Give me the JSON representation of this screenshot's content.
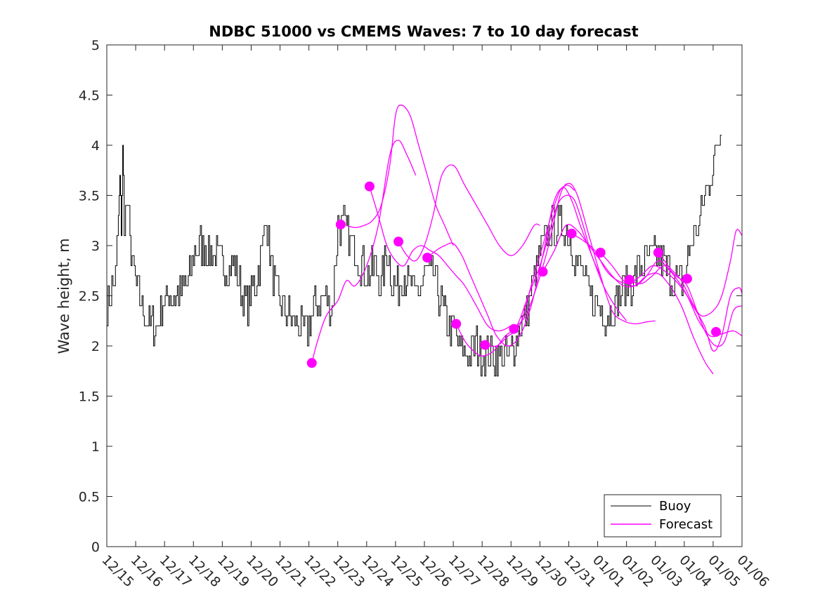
{
  "chart_data": {
    "type": "line",
    "title": "NDBC 51000 vs CMEMS Waves: 7 to 10 day forecast",
    "xlabel": "",
    "ylabel": "Wave height, m",
    "xlim": [
      0,
      22
    ],
    "ylim": [
      0,
      5
    ],
    "yticks": [
      0,
      0.5,
      1,
      1.5,
      2,
      2.5,
      3,
      3.5,
      4,
      4.5,
      5
    ],
    "ytick_labels": [
      "0",
      "0.5",
      "1",
      "1.5",
      "2",
      "2.5",
      "3",
      "3.5",
      "4",
      "4.5",
      "5"
    ],
    "xticks": [
      0,
      1,
      2,
      3,
      4,
      5,
      6,
      7,
      8,
      9,
      10,
      11,
      12,
      13,
      14,
      15,
      16,
      17,
      18,
      19,
      20,
      21,
      22
    ],
    "xtick_labels": [
      "12/15",
      "12/16",
      "12/17",
      "12/18",
      "12/19",
      "12/20",
      "12/21",
      "12/22",
      "12/23",
      "12/24",
      "12/25",
      "12/26",
      "12/27",
      "12/28",
      "12/29",
      "12/30",
      "12/31",
      "01/01",
      "01/02",
      "01/03",
      "01/04",
      "01/05",
      "01/06"
    ],
    "x_unit": "days since 12/15",
    "grid": false,
    "legend": {
      "position": "bottom-right",
      "entries": [
        "Buoy",
        "Forecast"
      ]
    },
    "colors": {
      "buoy": "#000000",
      "forecast": "#ff00ff",
      "axis": "#262626"
    },
    "series": [
      {
        "name": "Buoy",
        "color": "#000000",
        "x": [
          0,
          0.3,
          0.4,
          0.45,
          0.5,
          0.55,
          0.6,
          0.7,
          0.8,
          0.95,
          1.1,
          1.3,
          1.5,
          1.7,
          1.9,
          2.1,
          2.4,
          2.7,
          2.9,
          3.0,
          3.2,
          3.4,
          3.6,
          3.8,
          4.0,
          4.2,
          4.4,
          4.6,
          4.8,
          5.0,
          5.2,
          5.4,
          5.5,
          5.6,
          5.8,
          6.0,
          6.3,
          6.6,
          6.9,
          7.0,
          7.2,
          7.5,
          7.8,
          8.0,
          8.2,
          8.3,
          8.5,
          8.7,
          9.0,
          9.3,
          9.5,
          9.7,
          9.9,
          10.1,
          10.3,
          10.5,
          10.7,
          11.0,
          11.3,
          11.5,
          11.7,
          11.9,
          12.2,
          12.5,
          12.8,
          13.0,
          13.3,
          13.6,
          13.9,
          14.1,
          14.3,
          14.5,
          14.8,
          15.0,
          15.2,
          15.5,
          15.8,
          16.0,
          16.2,
          16.5,
          16.7,
          17.0,
          17.3,
          17.6,
          17.9,
          18.2,
          18.5,
          18.8,
          19.0,
          19.3,
          19.5,
          19.8,
          20.0,
          20.2,
          20.5,
          20.7,
          20.9,
          21.1,
          21.2,
          21.3
        ],
        "y": [
          2.4,
          2.7,
          3.3,
          3.6,
          3.2,
          3.9,
          3.3,
          3.4,
          3.0,
          2.7,
          2.5,
          2.3,
          2.2,
          2.2,
          2.4,
          2.5,
          2.5,
          2.6,
          2.7,
          2.9,
          3.0,
          3.0,
          2.9,
          2.9,
          2.8,
          2.8,
          2.8,
          2.6,
          2.4,
          2.5,
          2.7,
          3.0,
          3.4,
          3.0,
          2.6,
          2.4,
          2.3,
          2.2,
          2.1,
          2.2,
          2.4,
          2.5,
          2.4,
          3.2,
          3.2,
          3.1,
          3.0,
          2.9,
          2.7,
          2.8,
          2.6,
          3.0,
          2.6,
          2.6,
          2.7,
          2.6,
          2.5,
          2.7,
          2.7,
          2.5,
          2.3,
          2.2,
          2.0,
          1.9,
          2.0,
          1.9,
          1.9,
          1.9,
          1.9,
          2.0,
          2.2,
          2.3,
          2.7,
          2.9,
          3.1,
          3.2,
          3.2,
          3.1,
          2.9,
          2.7,
          2.5,
          2.4,
          2.3,
          2.4,
          2.6,
          2.6,
          2.8,
          2.9,
          2.9,
          2.8,
          2.7,
          2.6,
          2.7,
          3.0,
          3.2,
          3.5,
          3.7,
          3.9,
          4.1,
          4.1
        ]
      },
      {
        "name": "Forecast",
        "color": "#ff00ff",
        "segments": [
          {
            "x": [
              7.1,
              7.3,
              7.6,
              8.0,
              8.3,
              8.6,
              9.0,
              9.4,
              9.8,
              10.1,
              10.4,
              10.7
            ],
            "y": [
              1.83,
              2.05,
              2.3,
              2.45,
              2.65,
              2.6,
              2.8,
              3.2,
              3.9,
              4.05,
              3.9,
              3.7
            ]
          },
          {
            "x": [
              8.3,
              8.6,
              8.9,
              9.2,
              9.5,
              9.8,
              10.0,
              10.2,
              10.5,
              10.8,
              11.1,
              11.4,
              11.7,
              12.0
            ],
            "y": [
              3.2,
              3.18,
              3.2,
              3.25,
              3.4,
              3.8,
              4.3,
              4.4,
              4.3,
              4.0,
              3.7,
              3.4,
              3.2,
              3.0
            ]
          },
          {
            "x": [
              9.1,
              9.4,
              9.7,
              10.0,
              10.3,
              10.6,
              10.9,
              11.2,
              11.5,
              11.8,
              12.1,
              12.4,
              12.8,
              13.2,
              13.6,
              14.0
            ],
            "y": [
              3.59,
              3.3,
              3.0,
              2.85,
              2.8,
              2.95,
              3.0,
              2.95,
              2.9,
              2.8,
              2.7,
              2.6,
              2.4,
              2.2,
              2.15,
              2.2
            ]
          },
          {
            "x": [
              10.1,
              10.4,
              10.7,
              11.0,
              11.3,
              11.6,
              12.0,
              12.4,
              12.8,
              13.2,
              13.6,
              14.0,
              14.4,
              14.8,
              15.0
            ],
            "y": [
              3.04,
              2.9,
              2.85,
              3.0,
              3.3,
              3.7,
              3.8,
              3.6,
              3.4,
              3.2,
              3.0,
              2.9,
              3.0,
              3.2,
              3.2
            ]
          },
          {
            "x": [
              11.1,
              11.4,
              11.7,
              12.0,
              12.3,
              12.6,
              12.9,
              13.2,
              13.5,
              13.9,
              14.3,
              14.7,
              15.1,
              15.5,
              15.9,
              16.2
            ],
            "y": [
              2.88,
              2.95,
              3.0,
              3.02,
              2.9,
              2.7,
              2.5,
              2.3,
              2.1,
              2.0,
              2.1,
              2.4,
              2.9,
              3.45,
              3.6,
              3.55
            ]
          },
          {
            "x": [
              12.1,
              12.4,
              12.7,
              13.0,
              13.4,
              13.8,
              14.2,
              14.6,
              15.0,
              15.3,
              15.6,
              15.9,
              16.2,
              16.5,
              16.8,
              17.1
            ],
            "y": [
              2.22,
              2.05,
              1.95,
              1.9,
              1.95,
              2.1,
              2.2,
              2.5,
              2.8,
              3.1,
              3.4,
              3.5,
              3.45,
              3.2,
              2.9,
              2.7
            ]
          },
          {
            "x": [
              13.1,
              13.5,
              13.9,
              14.3,
              14.7,
              15.1,
              15.5,
              15.8,
              16.1,
              16.4,
              16.8,
              17.2,
              17.6,
              18.0
            ],
            "y": [
              2.01,
              2.0,
              2.1,
              2.2,
              2.6,
              3.0,
              3.4,
              3.58,
              3.45,
              3.2,
              2.9,
              2.6,
              2.4,
              2.25
            ]
          },
          {
            "x": [
              14.1,
              14.5,
              14.9,
              15.3,
              15.7,
              16.0,
              16.3,
              16.7,
              17.1,
              17.5,
              17.9,
              18.3,
              18.7,
              19.0
            ],
            "y": [
              2.17,
              2.3,
              2.6,
              3.0,
              3.5,
              3.62,
              3.5,
              3.1,
              2.7,
              2.35,
              2.25,
              2.22,
              2.24,
              2.25
            ]
          },
          {
            "x": [
              15.1,
              15.5,
              15.9,
              16.3,
              16.7,
              17.1,
              17.5,
              17.9,
              18.3,
              18.7,
              19.1,
              19.5,
              19.9,
              20.3,
              20.7,
              21.0
            ],
            "y": [
              2.74,
              2.95,
              3.2,
              3.15,
              3.0,
              2.85,
              2.7,
              2.6,
              2.6,
              2.7,
              2.72,
              2.6,
              2.4,
              2.1,
              1.85,
              1.72
            ]
          },
          {
            "x": [
              16.1,
              16.5,
              16.9,
              17.3,
              17.7,
              18.1,
              18.5,
              18.9,
              19.3,
              19.7,
              20.1,
              20.5,
              20.9,
              21.3,
              21.7,
              22.0
            ],
            "y": [
              3.12,
              3.05,
              2.95,
              2.75,
              2.65,
              2.63,
              2.7,
              2.8,
              2.75,
              2.65,
              2.5,
              2.25,
              2.1,
              2.12,
              2.15,
              2.1
            ]
          },
          {
            "x": [
              17.1,
              17.5,
              17.9,
              18.3,
              18.7,
              19.1,
              19.5,
              19.9,
              20.3,
              20.7,
              21.0,
              21.3,
              21.6,
              21.9,
              22.0
            ],
            "y": [
              2.93,
              2.8,
              2.65,
              2.6,
              2.7,
              2.85,
              2.75,
              2.6,
              2.4,
              2.2,
              1.95,
              2.1,
              2.5,
              2.58,
              2.52
            ]
          },
          {
            "x": [
              18.1,
              18.5,
              18.9,
              19.3,
              19.7,
              20.1,
              20.5,
              20.8,
              21.1,
              21.4,
              21.7,
              22.0
            ],
            "y": [
              2.66,
              2.62,
              2.7,
              2.8,
              2.7,
              2.6,
              2.3,
              2.1,
              2.0,
              2.05,
              2.35,
              2.4
            ]
          },
          {
            "x": [
              19.1,
              19.5,
              19.9,
              20.3,
              20.6,
              21.0,
              21.3,
              21.6,
              21.8,
              22.0
            ],
            "y": [
              2.93,
              2.78,
              2.65,
              2.42,
              2.3,
              2.35,
              2.5,
              2.85,
              3.15,
              3.1
            ]
          }
        ],
        "markers": {
          "x": [
            7.1,
            8.1,
            9.1,
            10.1,
            11.1,
            12.1,
            13.1,
            14.1,
            15.1,
            16.1,
            17.1,
            18.1,
            19.1,
            20.1,
            21.1
          ],
          "y": [
            1.83,
            3.21,
            3.59,
            3.04,
            2.88,
            2.22,
            2.01,
            2.17,
            2.74,
            3.12,
            2.93,
            2.66,
            2.93,
            2.67,
            2.14
          ]
        }
      }
    ]
  }
}
